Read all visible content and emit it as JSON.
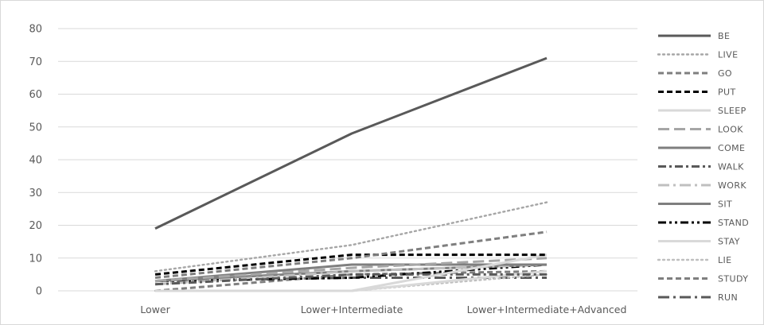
{
  "chart_data": {
    "type": "line",
    "title": "",
    "xlabel": "",
    "ylabel": "",
    "categories": [
      "Lower",
      "Lower+Intermediate",
      "Lower+Intermediate+Advanced"
    ],
    "ylim": [
      0,
      80
    ],
    "yticks": [
      "0",
      "10",
      "20",
      "30",
      "40",
      "50",
      "60",
      "70",
      "80"
    ],
    "grid": "horizontal",
    "legend_position": "right",
    "series": [
      {
        "name": "BE",
        "values": [
          19,
          48,
          71
        ],
        "color": "#595959",
        "dash": "solid"
      },
      {
        "name": "LIVE",
        "values": [
          6,
          14,
          27
        ],
        "color": "#a6a6a6",
        "dash": "dot"
      },
      {
        "name": "GO",
        "values": [
          4,
          10,
          18
        ],
        "color": "#7f7f7f",
        "dash": "dash"
      },
      {
        "name": "PUT",
        "values": [
          5,
          11,
          11
        ],
        "color": "#000000",
        "dash": "dash"
      },
      {
        "name": "SLEEP",
        "values": [
          0,
          0,
          11
        ],
        "color": "#d9d9d9",
        "dash": "solid"
      },
      {
        "name": "LOOK",
        "values": [
          3,
          7,
          10
        ],
        "color": "#a6a6a6",
        "dash": "longdash"
      },
      {
        "name": "COME",
        "values": [
          3,
          8,
          8
        ],
        "color": "#7f7f7f",
        "dash": "solid"
      },
      {
        "name": "WALK",
        "values": [
          2,
          5,
          5
        ],
        "color": "#595959",
        "dash": "dashdot"
      },
      {
        "name": "WORK",
        "values": [
          2,
          6,
          8
        ],
        "color": "#bfbfbf",
        "dash": "longdashdot"
      },
      {
        "name": "SIT",
        "values": [
          3,
          6,
          8
        ],
        "color": "#7f7f7f",
        "dash": "solid"
      },
      {
        "name": "STAND",
        "values": [
          3,
          4,
          8
        ],
        "color": "#000000",
        "dash": "dashdotdot"
      },
      {
        "name": "STAY",
        "values": [
          0,
          0,
          6
        ],
        "color": "#d9d9d9",
        "dash": "solid"
      },
      {
        "name": "LIE",
        "values": [
          0,
          0,
          5
        ],
        "color": "#bfbfbf",
        "dash": "dot"
      },
      {
        "name": "STUDY",
        "values": [
          0,
          5,
          6
        ],
        "color": "#7f7f7f",
        "dash": "dash"
      },
      {
        "name": "RUN",
        "values": [
          3,
          4,
          4
        ],
        "color": "#595959",
        "dash": "longdashdot"
      }
    ]
  }
}
